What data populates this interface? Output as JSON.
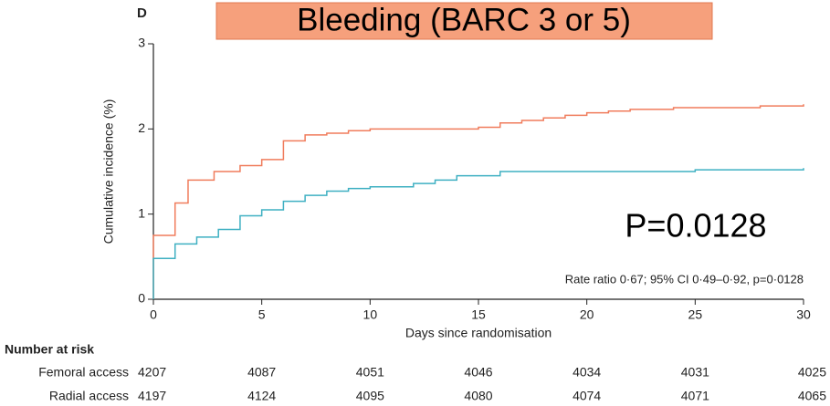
{
  "chart_data": {
    "type": "step",
    "panel_label": "D",
    "title": "Bleeding (BARC 3 or 5)",
    "annotation": "P=0.0128",
    "note": "Rate ratio 0·67; 95% CI 0·49–0·92, p=0·0128",
    "x_label": "Days since randomisation",
    "y_label": "Cumulative incidence (%)",
    "xlim": [
      0,
      30
    ],
    "xticks": [
      0,
      5,
      10,
      15,
      20,
      25,
      30
    ],
    "ylim": [
      0,
      3
    ],
    "yticks": [
      0,
      1,
      2,
      3
    ],
    "risk_title": "Number at risk",
    "series": [
      {
        "name": "Femoral access",
        "color": "#f07c5c",
        "x": [
          0,
          0,
          1,
          1.6,
          2.8,
          4,
          5,
          6,
          7,
          8,
          9,
          10,
          15,
          16,
          17,
          18,
          19,
          20,
          21,
          22,
          24,
          28,
          30
        ],
        "values": [
          0,
          0.75,
          1.13,
          1.4,
          1.5,
          1.57,
          1.64,
          1.86,
          1.93,
          1.95,
          1.98,
          2.0,
          2.02,
          2.07,
          2.1,
          2.13,
          2.16,
          2.19,
          2.21,
          2.23,
          2.25,
          2.27,
          2.29
        ],
        "risk": [
          4207,
          4087,
          4051,
          4046,
          4034,
          4031,
          4025
        ]
      },
      {
        "name": "Radial access",
        "color": "#3fb0c2",
        "x": [
          0,
          0,
          1,
          2,
          3,
          4,
          5,
          6,
          7,
          8,
          9,
          10,
          12,
          13,
          14,
          16,
          25,
          30
        ],
        "values": [
          0,
          0.48,
          0.65,
          0.73,
          0.82,
          0.98,
          1.05,
          1.15,
          1.22,
          1.27,
          1.3,
          1.32,
          1.36,
          1.4,
          1.45,
          1.5,
          1.52,
          1.54
        ],
        "risk": [
          4197,
          4124,
          4095,
          4080,
          4074,
          4071,
          4065
        ]
      }
    ]
  }
}
